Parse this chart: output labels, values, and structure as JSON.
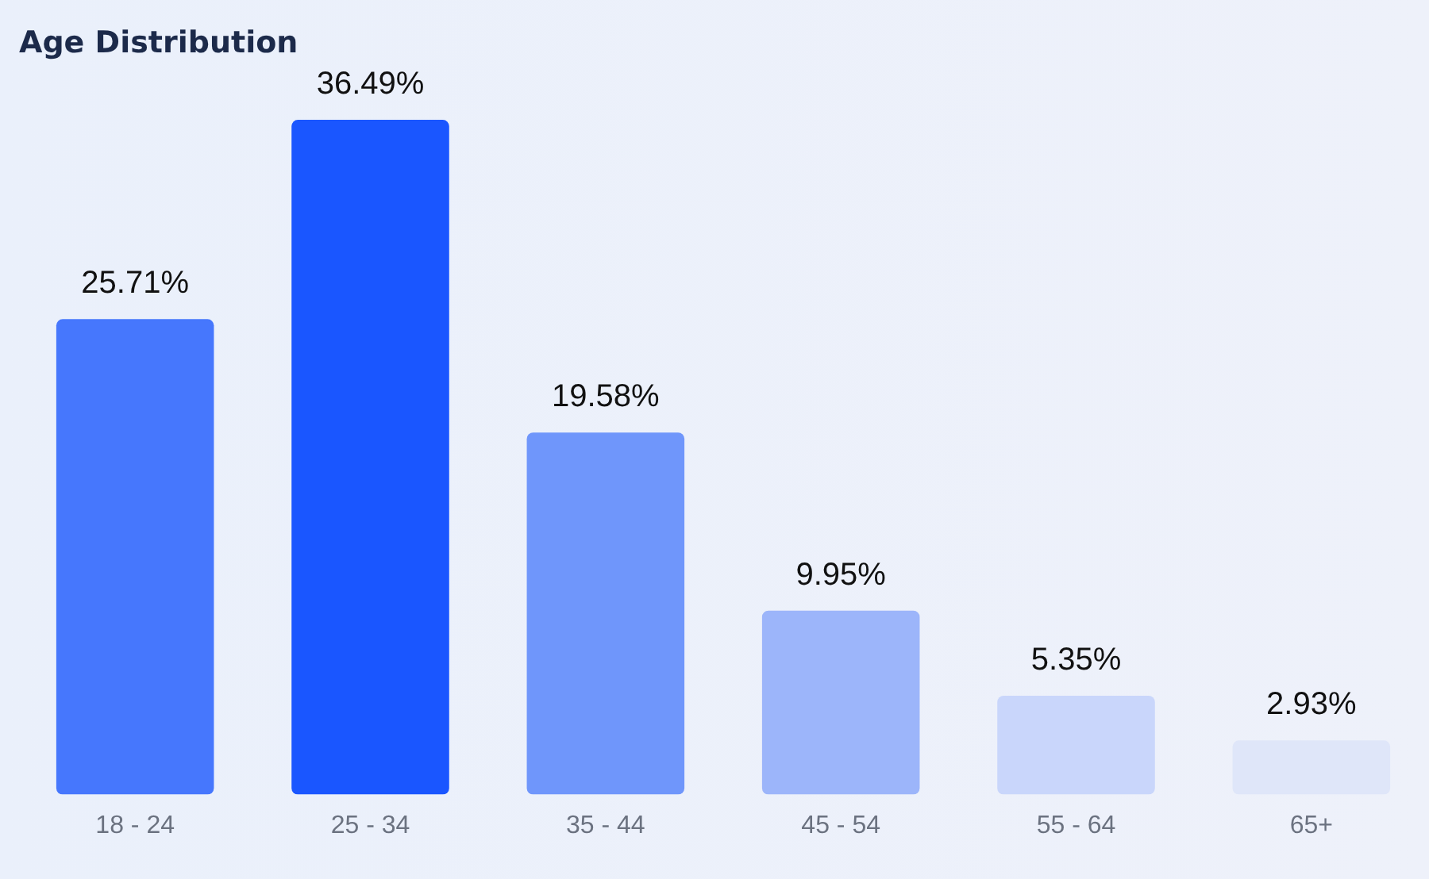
{
  "chart_data": {
    "type": "bar",
    "title": "Age Distribution",
    "categories": [
      "18 - 24",
      "25 - 34",
      "35 - 44",
      "45 - 54",
      "55 - 64",
      "65+"
    ],
    "values": [
      25.71,
      36.49,
      19.58,
      9.95,
      5.35,
      2.93
    ],
    "colors": [
      "#4677fd",
      "#1a56ff",
      "#6f96fb",
      "#9cb5fa",
      "#c9d6fb",
      "#dfe6f9"
    ],
    "value_labels": [
      "25.71%",
      "36.49%",
      "19.58%",
      "9.95%",
      "5.35%",
      "2.93%"
    ],
    "grid": false,
    "legend": false
  }
}
